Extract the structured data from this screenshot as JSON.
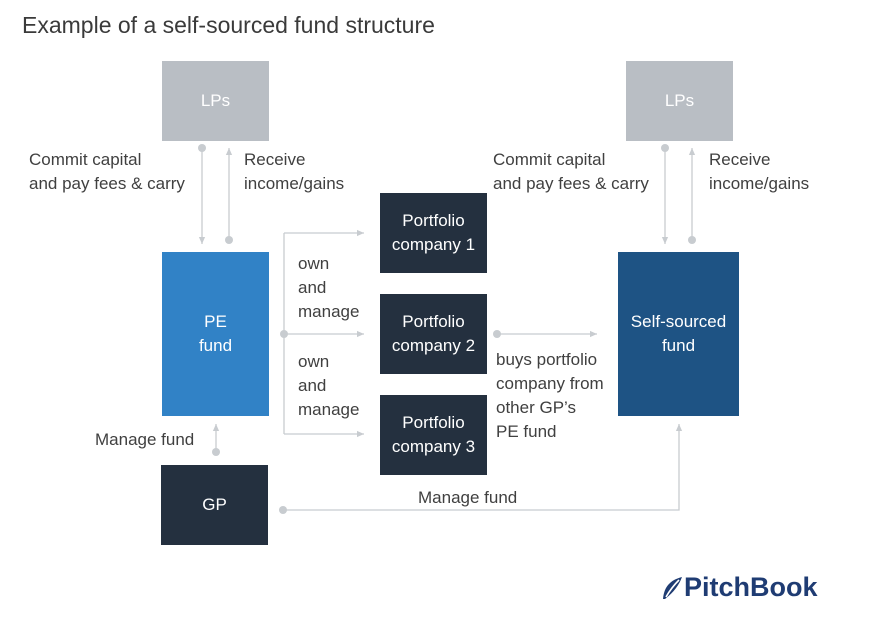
{
  "title": "Example of a self-sourced fund structure",
  "colors": {
    "lp": "#b9bec4",
    "pe_fund": "#3182c6",
    "self_fund": "#1e5384",
    "dark": "#24303f",
    "line": "#c8ccd0",
    "logo": "#1f3c73"
  },
  "nodes": {
    "lps_left": "LPs",
    "lps_right": "LPs",
    "pe_fund": "PE\nfund",
    "self_fund": "Self-sourced\nfund",
    "gp": "GP",
    "portfolio_1": "Portfolio\ncompany 1",
    "portfolio_2": "Portfolio\ncompany 2",
    "portfolio_3": "Portfolio\ncompany 3"
  },
  "labels": {
    "commit_left": "Commit capital\nand pay fees & carry",
    "receive_left": "Receive\nincome/gains",
    "commit_right": "Commit capital\nand pay fees & carry",
    "receive_right": "Receive\nincome/gains",
    "own_manage_1": "own\nand\nmanage",
    "own_manage_2": "own\nand\nmanage",
    "buys": "buys portfolio\ncompany from\nother GP’s\nPE fund",
    "manage_fund_left": "Manage fund",
    "manage_fund_bottom": "Manage fund"
  },
  "logo": {
    "text": "PitchBook",
    "icon": "pitchbook-leaf-icon"
  }
}
